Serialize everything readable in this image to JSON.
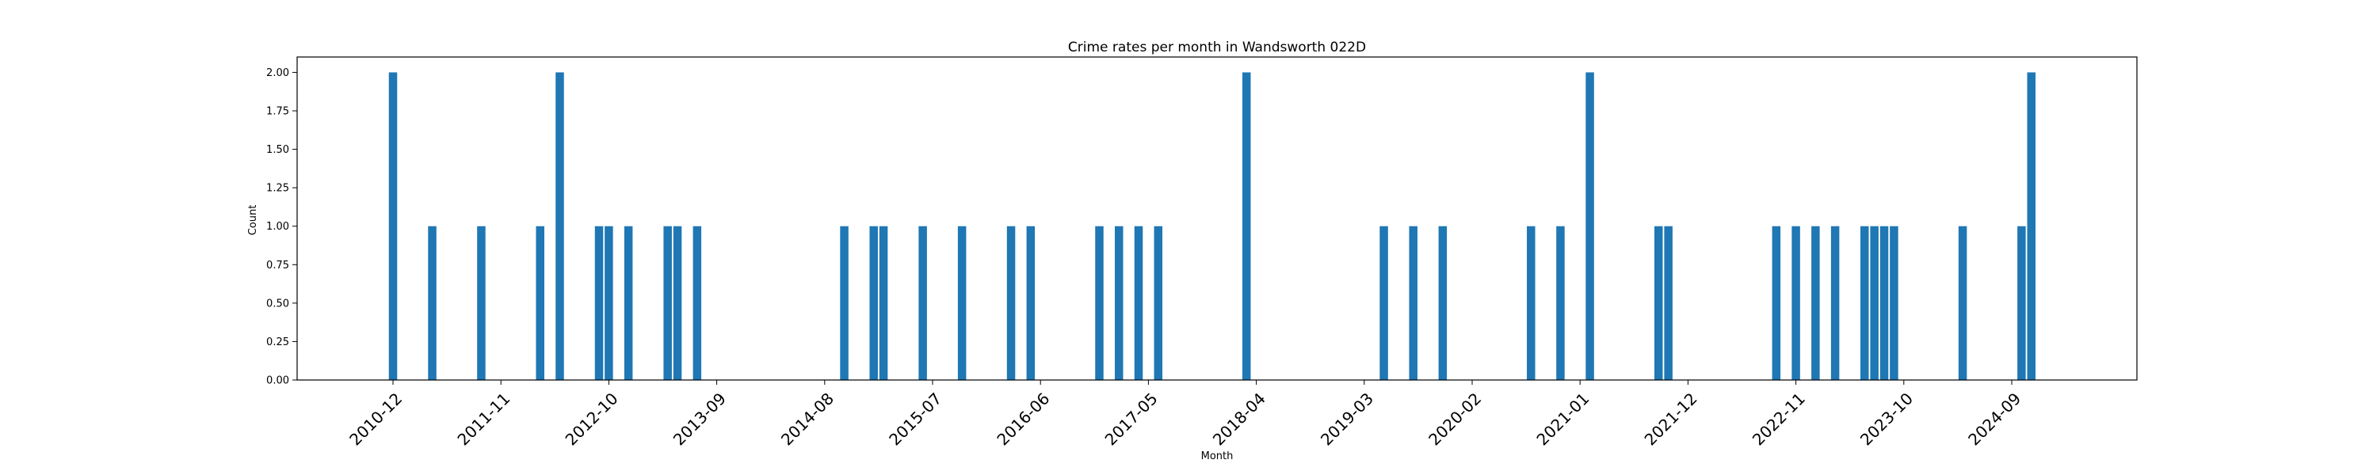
{
  "chart_data": {
    "type": "bar",
    "title": "Crime rates per month in Wandsworth 022D",
    "xlabel": "Month",
    "ylabel": "Count",
    "ylim": [
      0,
      2.1
    ],
    "yticks": [
      "0.00",
      "0.25",
      "0.50",
      "0.75",
      "1.00",
      "1.25",
      "1.50",
      "1.75",
      "2.00"
    ],
    "xtick_labels": [
      "2010-12",
      "2011-11",
      "2012-10",
      "2013-09",
      "2014-08",
      "2015-07",
      "2016-06",
      "2017-05",
      "2018-04",
      "2019-03",
      "2020-02",
      "2021-01",
      "2021-12",
      "2022-11",
      "2023-10",
      "2024-09"
    ],
    "grid": false,
    "bar_color": "#1f77b4",
    "categories": [
      "2010-12",
      "2011-04",
      "2011-09",
      "2012-03",
      "2012-05",
      "2012-09",
      "2012-10",
      "2012-12",
      "2013-04",
      "2013-05",
      "2013-07",
      "2014-10",
      "2015-01",
      "2015-02",
      "2015-06",
      "2015-10",
      "2016-03",
      "2016-05",
      "2016-12",
      "2017-02",
      "2017-04",
      "2017-06",
      "2018-03",
      "2019-05",
      "2019-08",
      "2019-11",
      "2020-08",
      "2020-11",
      "2021-02",
      "2021-09",
      "2021-10",
      "2022-09",
      "2022-11",
      "2023-01",
      "2023-03",
      "2023-06",
      "2023-07",
      "2023-08",
      "2023-09",
      "2024-04",
      "2024-10",
      "2024-11"
    ],
    "values": [
      2,
      1,
      1,
      1,
      2,
      1,
      1,
      1,
      1,
      1,
      1,
      1,
      1,
      1,
      1,
      1,
      1,
      1,
      1,
      1,
      1,
      1,
      2,
      1,
      1,
      1,
      1,
      1,
      2,
      1,
      1,
      1,
      1,
      1,
      1,
      1,
      1,
      1,
      1,
      1,
      1,
      2
    ]
  }
}
